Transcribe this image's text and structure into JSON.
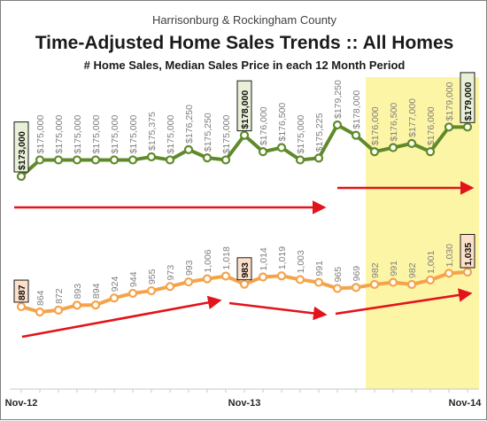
{
  "header": {
    "line1": "Harrisonburg & Rockingham County",
    "line2": "Time-Adjusted Home Sales Trends  ::  All Homes",
    "line3": "# Home Sales, Median Sales Price in each 12 Month Period"
  },
  "colors": {
    "price_line": "#5f8a2a",
    "sales_line": "#f5a34a",
    "arrow": "#e3131b",
    "shade": "#fdf5a6",
    "price_box": "#e8f0d8",
    "sales_box": "#fde0c9"
  },
  "chart_data": {
    "type": "line",
    "x": [
      "Nov-12",
      "Dec-12",
      "Jan-13",
      "Feb-13",
      "Mar-13",
      "Apr-13",
      "May-13",
      "Jun-13",
      "Jul-13",
      "Aug-13",
      "Sep-13",
      "Oct-13",
      "Nov-13",
      "Dec-13",
      "Jan-14",
      "Feb-14",
      "Mar-14",
      "Apr-14",
      "May-14",
      "Jun-14",
      "Jul-14",
      "Aug-14",
      "Sep-14",
      "Oct-14",
      "Nov-14"
    ],
    "x_tick_labels": [
      "Nov-12",
      "Nov-13",
      "Nov-14"
    ],
    "series": [
      {
        "key": "price",
        "values": [
          173000,
          175000,
          175000,
          175000,
          175000,
          175000,
          175000,
          175375,
          175000,
          176250,
          175250,
          175000,
          178000,
          176000,
          176500,
          175000,
          175225,
          179250,
          178000,
          176000,
          176500,
          177000,
          176000,
          179000,
          179000
        ],
        "labels": [
          "$173,000",
          "$175,000",
          "$175,000",
          "$175,000",
          "$175,000",
          "$175,000",
          "$175,000",
          "$175,375",
          "$175,000",
          "$176,250",
          "$175,250",
          "$175,000",
          "$178,000",
          "$176,000",
          "$176,500",
          "$175,000",
          "$175,225",
          "$179,250",
          "$178,000",
          "$176,000",
          "$176,500",
          "$177,000",
          "$176,000",
          "$179,000",
          "$179,000"
        ],
        "highlighted": [
          0,
          12,
          24
        ]
      },
      {
        "key": "sales",
        "values": [
          887,
          864,
          872,
          893,
          894,
          924,
          944,
          955,
          973,
          993,
          1006,
          1018,
          983,
          1014,
          1019,
          1003,
          991,
          965,
          969,
          982,
          991,
          982,
          1001,
          1030,
          1035
        ],
        "labels": [
          "887",
          "864",
          "872",
          "893",
          "894",
          "924",
          "944",
          "955",
          "973",
          "993",
          "1,006",
          "1,018",
          "983",
          "1,014",
          "1,019",
          "1,003",
          "991",
          "965",
          "969",
          "982",
          "991",
          "982",
          "1,001",
          "1,030",
          "1,035"
        ],
        "highlighted": [
          0,
          12,
          24
        ]
      }
    ],
    "highlight_range": [
      "Jun-14",
      "Nov-14"
    ],
    "grid": false,
    "legend": "none"
  }
}
